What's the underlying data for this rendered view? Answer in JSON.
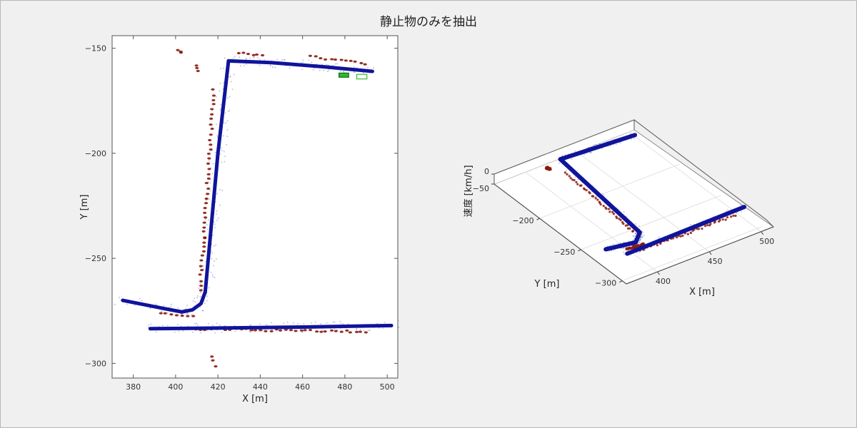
{
  "figure": {
    "title": "静止物のみを抽出"
  },
  "chart_data": [
    {
      "type": "scatter",
      "xlabel": "X [m]",
      "ylabel": "Y [m]",
      "xlim": [
        370,
        505
      ],
      "ylim": [
        -307,
        -144
      ],
      "xticks": [
        380,
        400,
        420,
        440,
        460,
        480,
        500
      ],
      "yticks": [
        -150,
        -200,
        -250,
        -300
      ],
      "ytick_labels": [
        "−150",
        "−200",
        "−250",
        "−300"
      ],
      "grid": false,
      "series": [
        {
          "color": "#10149a",
          "paths": [
            [
              [
                375,
                -270
              ],
              [
                385,
                -272
              ],
              [
                395,
                -274
              ],
              [
                403,
                -275.5
              ],
              [
                408,
                -274.5
              ],
              [
                412,
                -271.5
              ],
              [
                414,
                -266
              ]
            ],
            [
              [
                414,
                -266
              ],
              [
                420,
                -200
              ],
              [
                425,
                -156
              ]
            ],
            [
              [
                425,
                -156
              ],
              [
                445,
                -156.8
              ],
              [
                470,
                -158.8
              ],
              [
                493,
                -161
              ]
            ],
            [
              [
                388,
                -283.5
              ],
              [
                420,
                -283.2
              ],
              [
                460,
                -282.7
              ],
              [
                502,
                -282
              ]
            ]
          ]
        },
        {
          "color": "#8b1a0c",
          "paths": [
            [
              [
                401,
                -150.5
              ],
              [
                403,
                -151.8
              ]
            ],
            [
              [
                410,
                -158
              ],
              [
                411,
                -161
              ]
            ],
            [
              [
                430,
                -152.5
              ],
              [
                441,
                -153.2
              ]
            ],
            [
              [
                464,
                -154
              ],
              [
                490,
                -157.2
              ]
            ],
            [
              [
                418,
                -170
              ],
              [
                413.5,
                -240
              ],
              [
                411.5,
                -265
              ]
            ],
            [
              [
                393,
                -276
              ],
              [
                408,
                -278
              ]
            ],
            [
              [
                400,
                -283.5
              ],
              [
                490,
                -285
              ]
            ],
            [
              [
                417,
                -297
              ],
              [
                419,
                -301
              ]
            ]
          ]
        }
      ],
      "annotations": [
        {
          "type": "box",
          "x": [
            477.2,
            481.8
          ],
          "y": [
            -161.8,
            -163.8
          ],
          "fill": "#2eb82e",
          "stroke": "#107010"
        },
        {
          "type": "box",
          "x": [
            485.6,
            490.4
          ],
          "y": [
            -162.4,
            -164.6
          ],
          "fill": "none",
          "stroke": "#30c030"
        }
      ]
    },
    {
      "type": "scatter3d",
      "xlabel": "X [m]",
      "ylabel": "Y [m]",
      "zlabel": "速度 [km/h]",
      "xlim": [
        370,
        505
      ],
      "ylim": [
        -305,
        -145
      ],
      "zlim": [
        -50,
        0
      ],
      "xticks": [
        400,
        450,
        500
      ],
      "yticks": [
        -200,
        -250,
        -300
      ],
      "ytick_labels": [
        "−200",
        "−250",
        "−300"
      ],
      "zticks": [
        0,
        -50
      ],
      "ztick_labels": [
        "0",
        "−50"
      ],
      "grid": true,
      "series": [
        {
          "color": "#10149a",
          "paths": [
            [
              [
                378,
                -270
              ],
              [
                403,
                -275
              ],
              [
                414,
                -266
              ]
            ],
            [
              [
                414,
                -266
              ],
              [
                425,
                -156
              ]
            ],
            [
              [
                425,
                -156
              ],
              [
                493,
                -161
              ]
            ],
            [
              [
                388,
                -283.5
              ],
              [
                502,
                -282
              ]
            ]
          ]
        },
        {
          "color": "#8b1a0c",
          "paths": [
            [
              [
                418,
                -172
              ],
              [
                411.5,
                -262
              ]
            ],
            [
              [
                410,
                -158
              ],
              [
                411,
                -161
              ]
            ],
            [
              [
                400,
                -284.5
              ],
              [
                490,
                -286
              ]
            ],
            [
              [
                393,
                -277
              ],
              [
                408,
                -279
              ]
            ]
          ]
        }
      ]
    }
  ]
}
